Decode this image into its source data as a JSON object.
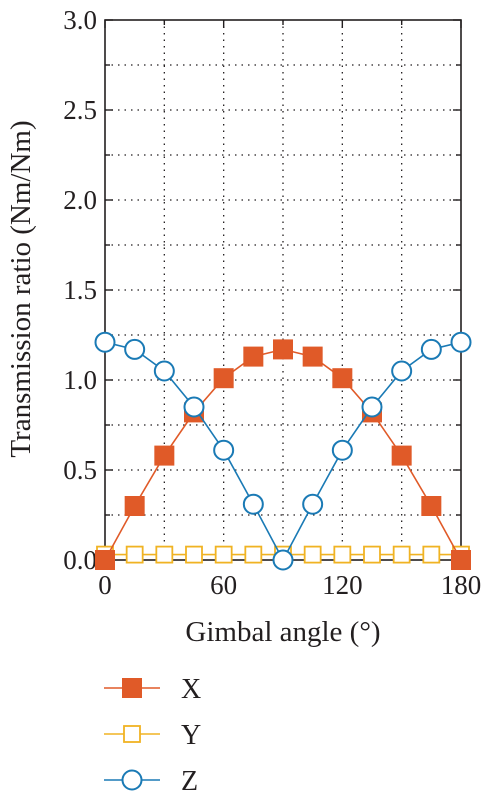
{
  "chart_data": {
    "type": "line",
    "xlabel": "Gimbal angle (°)",
    "ylabel": "Transmission ratio (Nm/Nm)",
    "xlim": [
      0,
      180
    ],
    "ylim": [
      0,
      3.0
    ],
    "xticks": [
      0,
      60,
      120,
      180
    ],
    "xtick_labels": [
      "0",
      "60",
      "120",
      "180"
    ],
    "yticks": [
      0,
      0.5,
      1.0,
      1.5,
      2.0,
      2.5,
      3.0
    ],
    "ytick_labels": [
      "0.0",
      "0.5",
      "1.0",
      "1.5",
      "2.0",
      "2.5",
      "3.0"
    ],
    "grid": true,
    "legend_position": "below",
    "x": [
      0,
      15,
      30,
      45,
      60,
      75,
      90,
      105,
      120,
      135,
      150,
      165,
      180
    ],
    "series": [
      {
        "name": "X",
        "marker": "filled-square",
        "color": "#e05a28",
        "values": [
          0.0,
          0.3,
          0.58,
          0.82,
          1.01,
          1.13,
          1.17,
          1.13,
          1.01,
          0.82,
          0.58,
          0.3,
          0.0
        ]
      },
      {
        "name": "Y",
        "marker": "open-square",
        "color": "#f0b323",
        "values": [
          0.03,
          0.03,
          0.03,
          0.03,
          0.03,
          0.03,
          0.03,
          0.03,
          0.03,
          0.03,
          0.03,
          0.03,
          0.03
        ]
      },
      {
        "name": "Z",
        "marker": "open-circle",
        "color": "#1a7ab5",
        "values": [
          1.21,
          1.17,
          1.05,
          0.85,
          0.61,
          0.31,
          0.0,
          0.31,
          0.61,
          0.85,
          1.05,
          1.17,
          1.21
        ]
      }
    ]
  }
}
